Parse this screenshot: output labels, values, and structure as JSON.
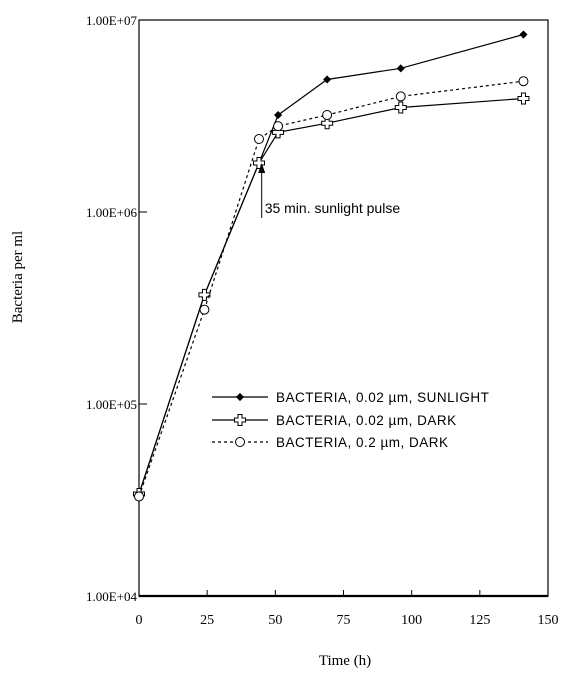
{
  "chart_data": {
    "type": "line",
    "title": "",
    "xlabel": "Time (h)",
    "ylabel": "Bacteria per ml",
    "xlim": [
      0,
      150
    ],
    "ylim": [
      10000,
      10000000
    ],
    "yscale": "log",
    "x_ticks": [
      0,
      25,
      50,
      75,
      100,
      125,
      150
    ],
    "x_tick_labels": [
      "0",
      "25",
      "50",
      "75",
      "100",
      "125",
      "150"
    ],
    "y_ticks": [
      10000,
      100000,
      1000000,
      10000000
    ],
    "y_tick_labels": [
      "1.00E+04",
      "1.00E+05",
      "1.00E+06",
      "1.00E+07"
    ],
    "grid": false,
    "legend_position": "center-right",
    "series": [
      {
        "name": "BACTERIA, 0.02 µm, SUNLIGHT",
        "marker": "diamond",
        "line": "solid",
        "x": [
          0,
          24,
          44,
          51,
          69,
          96,
          141
        ],
        "y": [
          34000,
          370000,
          1800000,
          3200000,
          4900000,
          5600000,
          8400000
        ]
      },
      {
        "name": "BACTERIA, 0.02 µm, DARK",
        "marker": "open-cross",
        "line": "solid",
        "x": [
          0,
          24,
          44,
          51,
          69,
          96,
          141
        ],
        "y": [
          34000,
          370000,
          1800000,
          2600000,
          2900000,
          3500000,
          3900000
        ]
      },
      {
        "name": "BACTERIA, 0.2 µm, DARK",
        "marker": "open-circle",
        "line": "dashed",
        "x": [
          0,
          24,
          44,
          51,
          69,
          96,
          141
        ],
        "y": [
          33000,
          310000,
          2400000,
          2800000,
          3200000,
          4000000,
          4800000
        ]
      }
    ],
    "annotation": {
      "text": "35 min. sunlight pulse",
      "x": 45,
      "y": 1800000
    }
  }
}
